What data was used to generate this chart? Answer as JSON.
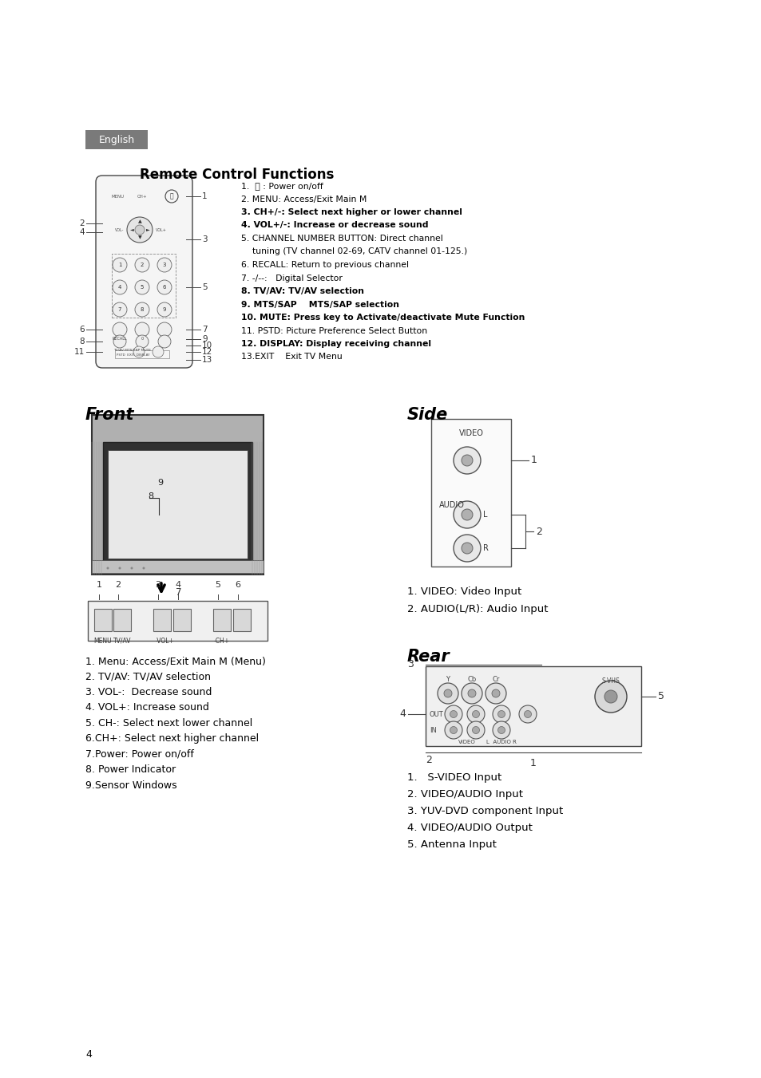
{
  "bg_color": "#ffffff",
  "page_number": "4",
  "english_label": "English",
  "english_bg": "#7a7a7a",
  "section_remote_title": "Remote Control Functions",
  "remote_items_left": [
    [
      "1.  ⏻ : Power on/off",
      false
    ],
    [
      "2. MENU: Access/Exit Main M",
      false
    ],
    [
      "3. CH+/-: Select next higher or lower channel",
      true
    ],
    [
      "4. VOL+/-: Increase or decrease sound",
      true
    ],
    [
      "5. CHANNEL NUMBER BUTTON: Direct channel",
      false
    ],
    [
      "    tuning (TV channel 02-69, CATV channel 01-125.)",
      false
    ],
    [
      "6. RECALL: Return to previous channel",
      false
    ],
    [
      "7. -/--:   Digital Selector",
      false
    ],
    [
      "8. TV/AV: TV/AV selection",
      true
    ],
    [
      "9. MTS/SAP    MTS/SAP selection",
      true
    ],
    [
      "10. MUTE: Press key to Activate/deactivate Mute Function",
      true
    ],
    [
      "11. PSTD: Picture Preference Select Button",
      false
    ],
    [
      "12. DISPLAY: Display receiving channel",
      true
    ],
    [
      "13.EXIT    Exit TV Menu",
      false
    ]
  ],
  "section_front_title": "Front",
  "front_items": [
    "1. Menu: Access/Exit Main M (Menu)",
    "2. TV/AV: TV/AV selection",
    "3. VOL-:  Decrease sound",
    "4. VOL+: Increase sound",
    "5. CH-: Select next lower channel",
    "6.CH+: Select next higher channel",
    "7.Power: Power on/off",
    "8. Power Indicator",
    "9.Sensor Windows"
  ],
  "section_side_title": "Side",
  "side_items": [
    "1. VIDEO: Video Input",
    "2. AUDIO(L/R): Audio Input"
  ],
  "section_rear_title": "Rear",
  "rear_items": [
    "1.   S-VIDEO Input",
    "2. VIDEO/AUDIO Input",
    "3. YUV-DVD component Input",
    "4. VIDEO/AUDIO Output",
    "5. Antenna Input"
  ]
}
